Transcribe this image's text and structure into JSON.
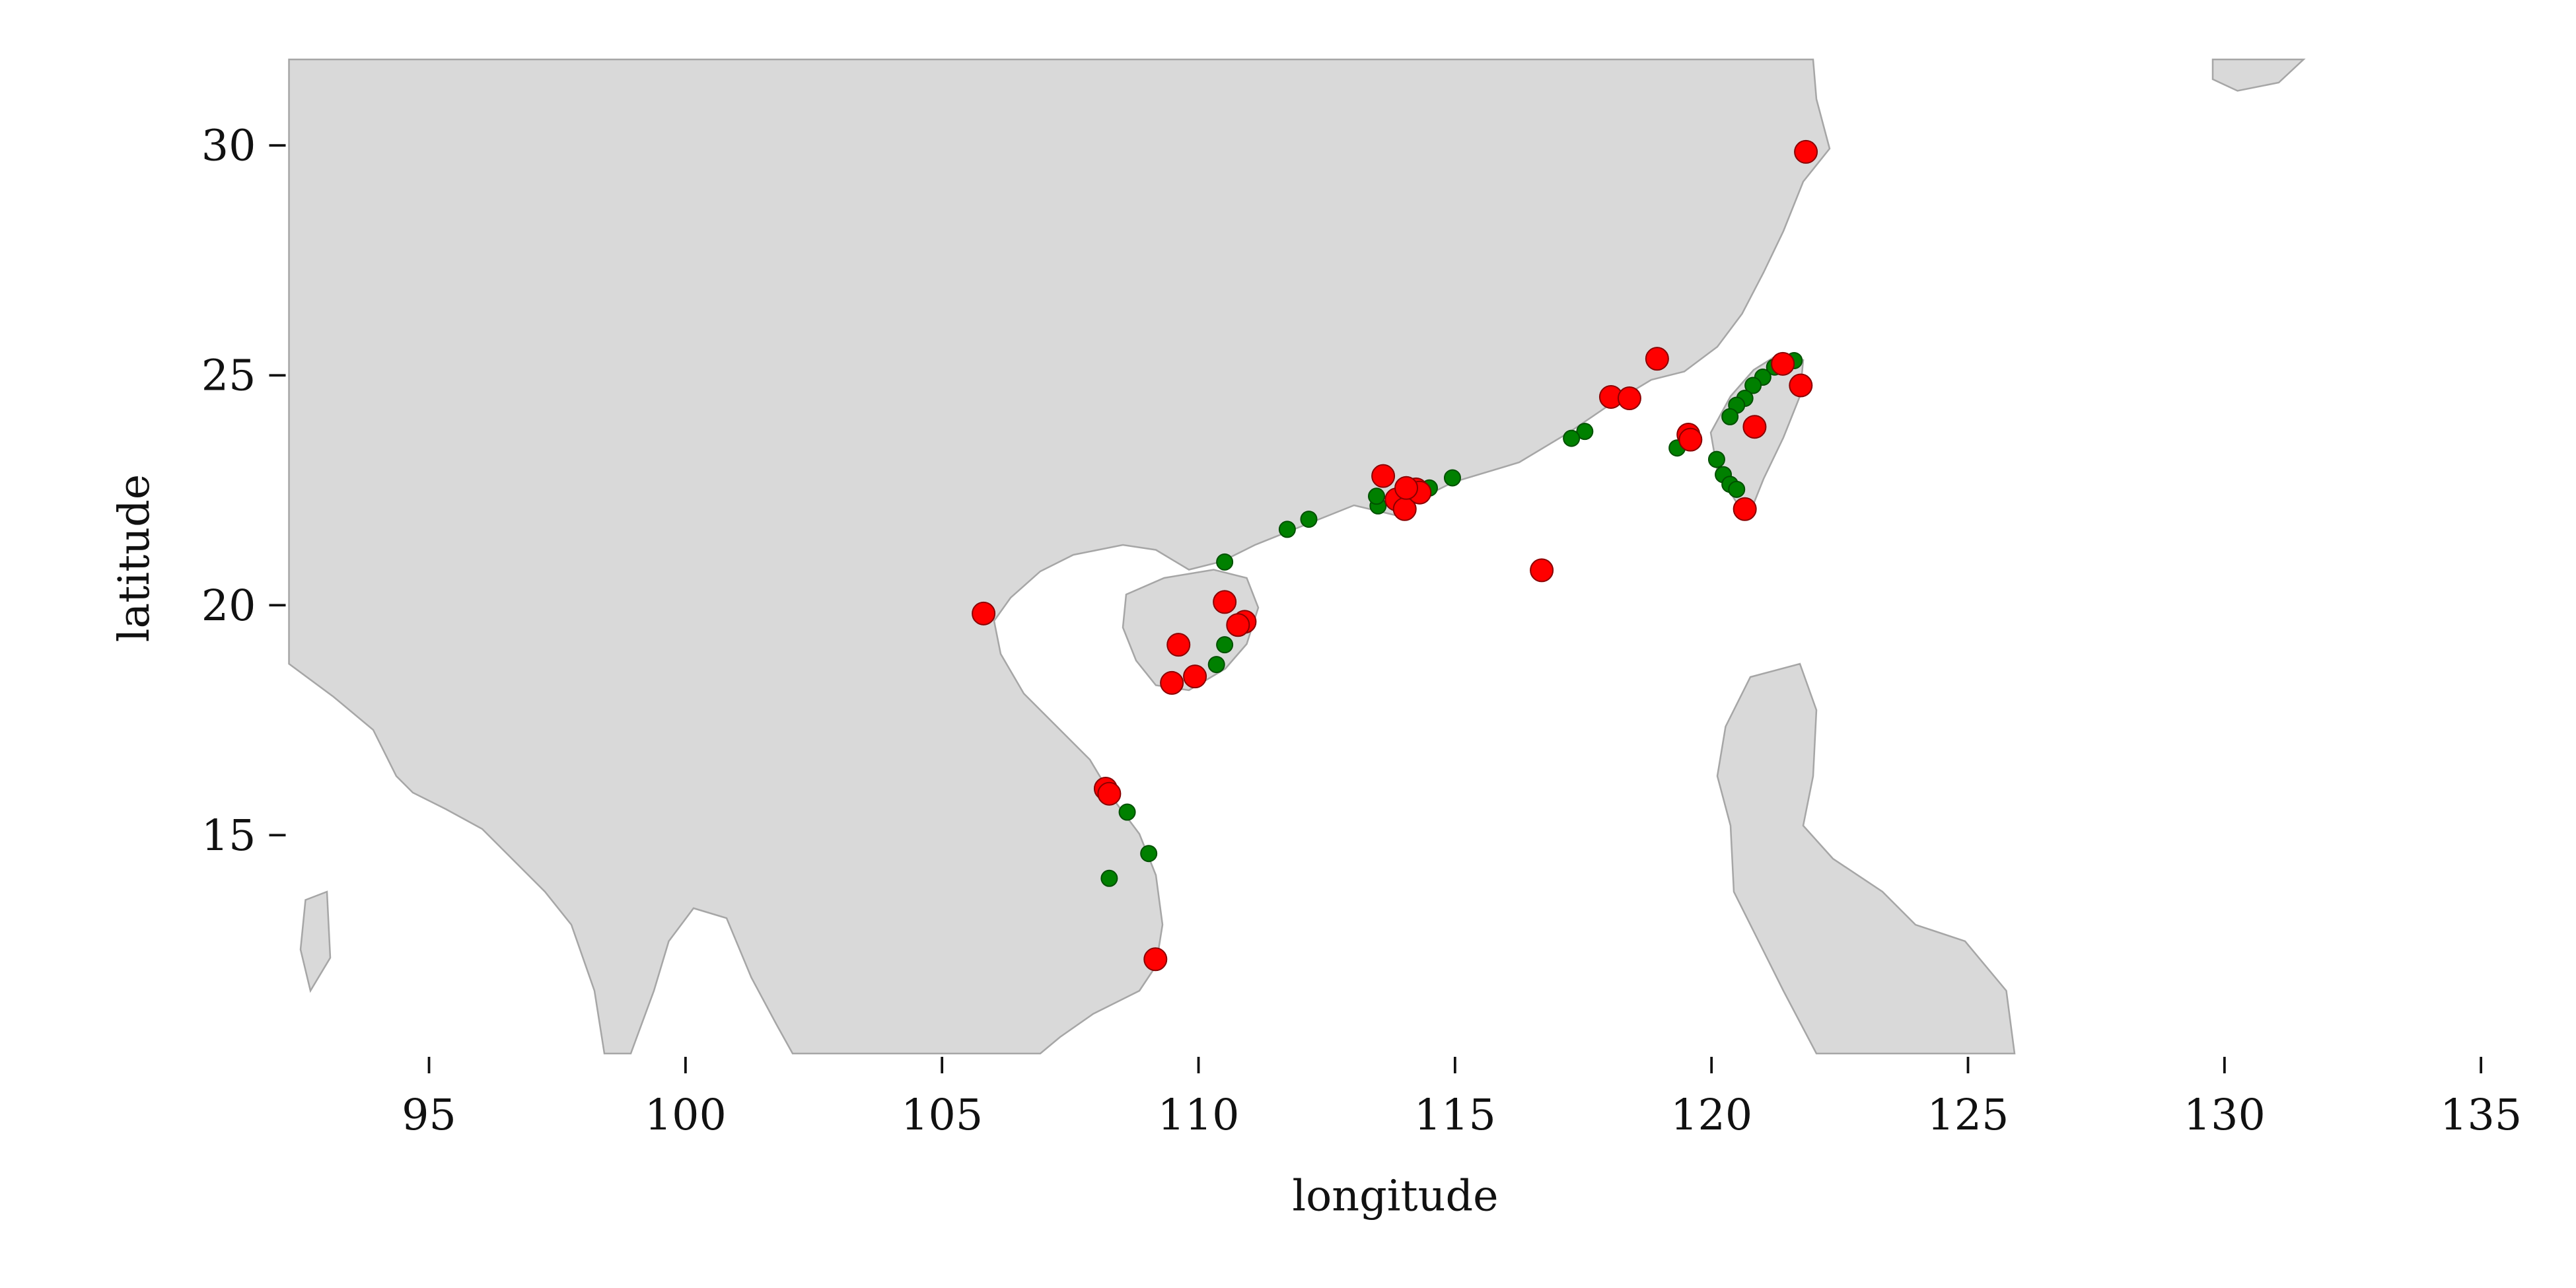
{
  "chart_data": {
    "type": "scatter",
    "xlabel": "longitude",
    "ylabel": "latitude",
    "xlim": [
      92.27,
      135.5
    ],
    "ylim": [
      10.25,
      31.87
    ],
    "xticks": [
      95,
      100,
      105,
      110,
      115,
      120,
      125,
      130,
      135
    ],
    "yticks": [
      15,
      20,
      25,
      30
    ],
    "series": [
      {
        "color": "green",
        "x": [
          121.61,
          121.23,
          121.0,
          120.81,
          120.65,
          120.49,
          120.36,
          120.1,
          120.23,
          120.36,
          120.49,
          119.33,
          117.53,
          117.27,
          114.95,
          114.5,
          113.5,
          113.47,
          112.15,
          111.73,
          110.51,
          110.51,
          110.35,
          108.61,
          109.03,
          108.26
        ],
        "values": [
          25.32,
          25.18,
          24.96,
          24.78,
          24.5,
          24.35,
          24.1,
          23.17,
          22.84,
          22.63,
          22.52,
          23.42,
          23.78,
          23.63,
          22.77,
          22.55,
          22.16,
          22.37,
          21.87,
          21.65,
          20.94,
          19.14,
          18.71,
          15.5,
          14.6,
          14.06
        ]
      },
      {
        "color": "red",
        "x": [
          121.84,
          118.94,
          118.04,
          118.4,
          121.74,
          121.39,
          120.84,
          119.55,
          119.59,
          120.65,
          116.69,
          113.6,
          113.86,
          114.02,
          114.24,
          114.31,
          114.05,
          105.81,
          110.51,
          109.61,
          110.9,
          110.77,
          109.93,
          109.48,
          108.19,
          108.26,
          109.16
        ],
        "values": [
          29.86,
          25.36,
          24.53,
          24.5,
          24.78,
          25.25,
          23.88,
          23.71,
          23.6,
          22.09,
          20.76,
          22.81,
          22.3,
          22.09,
          22.52,
          22.45,
          22.55,
          19.82,
          20.07,
          19.14,
          19.64,
          19.57,
          18.45,
          18.31,
          16.01,
          15.9,
          12.3
        ]
      }
    ]
  }
}
